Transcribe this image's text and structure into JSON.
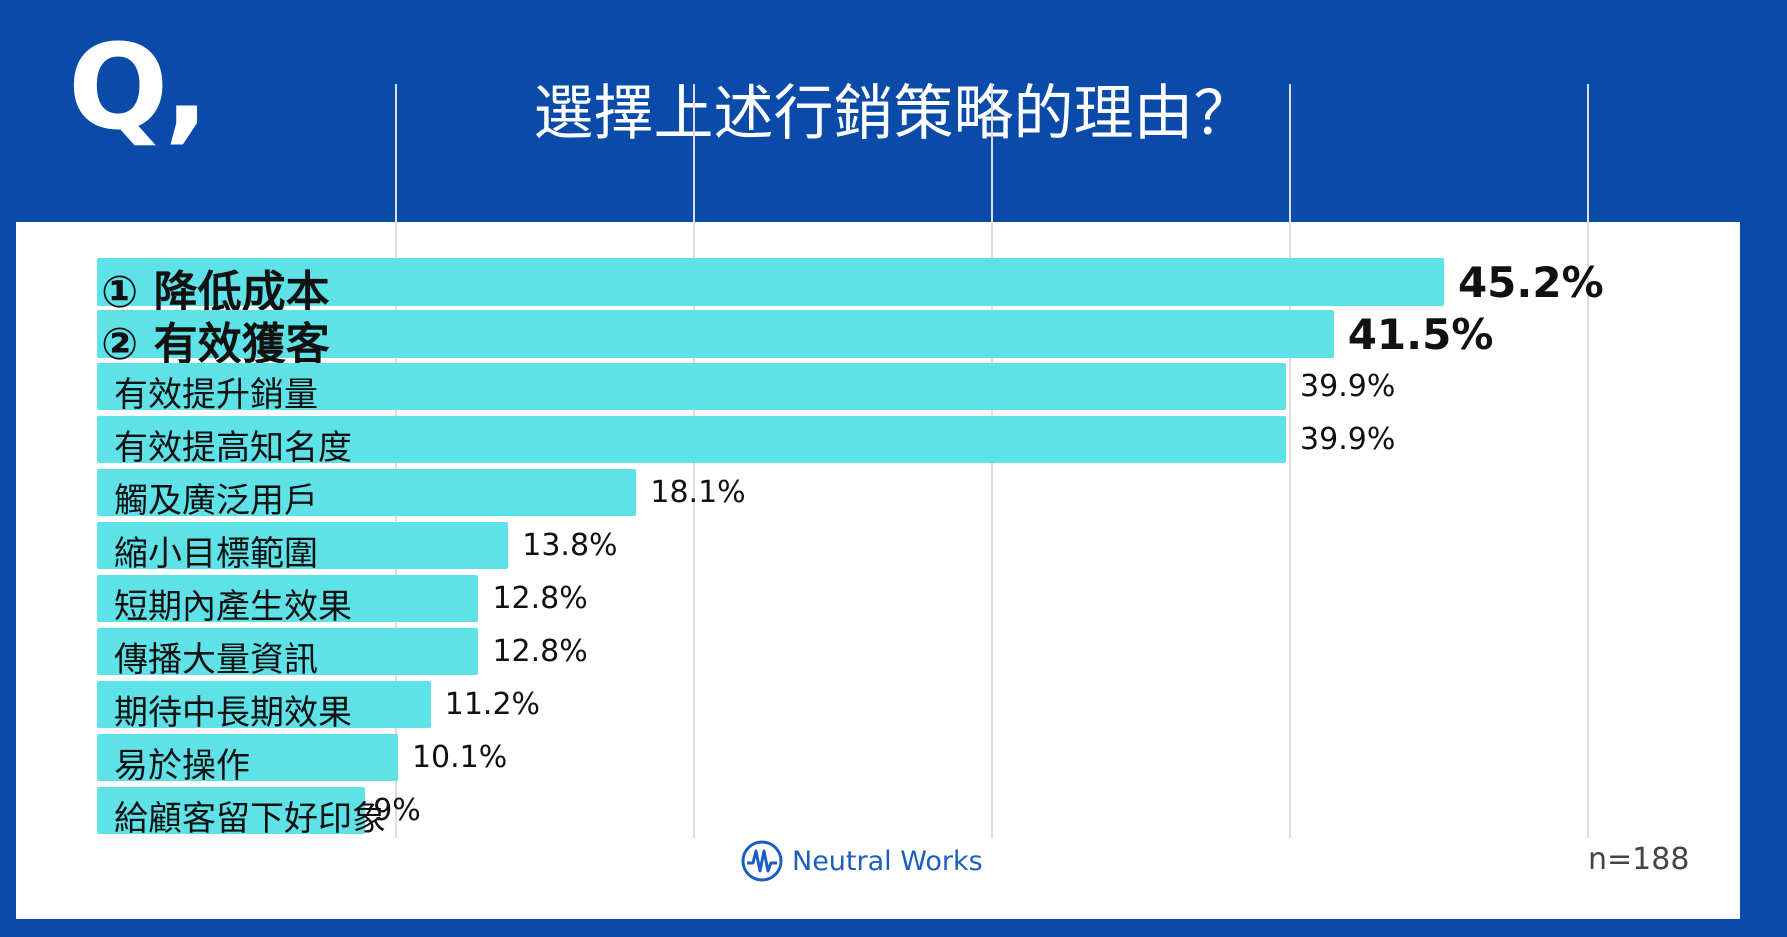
{
  "header": {
    "q_mark": "Q,",
    "title": "選擇上述行銷策略的理由？"
  },
  "footer": {
    "brand": "Neutral Works",
    "sample": "n=188"
  },
  "colors": {
    "background": "#0a4aa8",
    "bar": "#5ee2e8",
    "logo": "#1a5fbf"
  },
  "chart_data": {
    "type": "bar",
    "orientation": "horizontal",
    "xlim": [
      0,
      50
    ],
    "grid": true,
    "categories": [
      "① 降低成本",
      "② 有效獲客",
      "有效提升銷量",
      "有效提高知名度",
      "觸及廣泛用戶",
      "縮小目標範圍",
      "短期內產生效果",
      "傳播大量資訊",
      "期待中長期效果",
      "易於操作",
      "給顧客留下好印象"
    ],
    "values": [
      45.2,
      41.5,
      39.9,
      39.9,
      18.1,
      13.8,
      12.8,
      12.8,
      11.2,
      10.1,
      9
    ],
    "value_labels": [
      "45.2%",
      "41.5%",
      "39.9%",
      "39.9%",
      "18.1%",
      "13.8%",
      "12.8%",
      "12.8%",
      "11.2%",
      "10.1%",
      "9%"
    ],
    "emphasized": [
      true,
      true,
      false,
      false,
      false,
      false,
      false,
      false,
      false,
      false,
      false
    ]
  }
}
